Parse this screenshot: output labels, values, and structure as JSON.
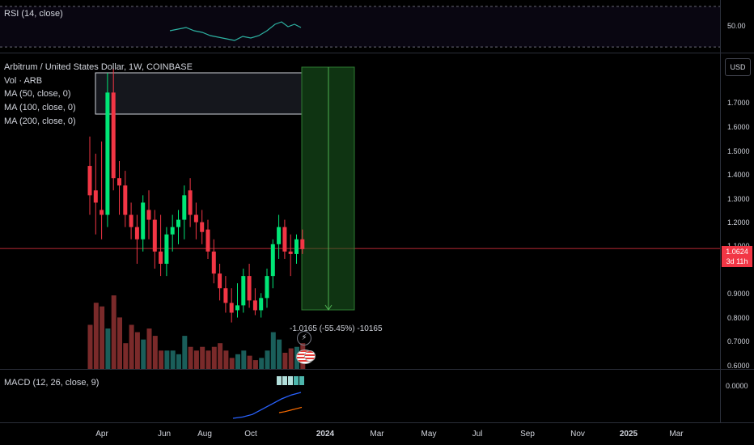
{
  "rsi": {
    "title": "RSI (14, close)",
    "axis_label": "50.00"
  },
  "main": {
    "legend": {
      "symbol": "Arbitrum / United States Dollar, 1W, COINBASE",
      "vol": "Vol · ARB",
      "ma50": "MA (50, close, 0)",
      "ma100": "MA (100, close, 0)",
      "ma200": "MA (200, close, 0)"
    },
    "currency_button": "USD",
    "price_axis": [
      "1.7000",
      "1.6000",
      "1.5000",
      "1.4000",
      "1.3000",
      "1.2000",
      "1.1000",
      "0.9000",
      "0.8000",
      "0.7000",
      "0.6000"
    ],
    "last_price": "1.0624",
    "countdown": "3d 11h",
    "measure_label": "-1.0165 (-55.45%) -10165"
  },
  "macd": {
    "title": "MACD (12, 26, close, 9)",
    "axis_label": "0.0000"
  },
  "time_axis": [
    {
      "label": "Apr",
      "bold": false
    },
    {
      "label": "Jun",
      "bold": false
    },
    {
      "label": "Aug",
      "bold": false
    },
    {
      "label": "Oct",
      "bold": false
    },
    {
      "label": "2024",
      "bold": true
    },
    {
      "label": "Mar",
      "bold": false
    },
    {
      "label": "May",
      "bold": false
    },
    {
      "label": "Jul",
      "bold": false
    },
    {
      "label": "Sep",
      "bold": false
    },
    {
      "label": "Nov",
      "bold": false
    },
    {
      "label": "2025",
      "bold": true
    },
    {
      "label": "Mar",
      "bold": false
    }
  ],
  "colors": {
    "up": "#00e676",
    "down": "#f23645",
    "vol_up": "#1a5e5a",
    "vol_down": "#7a2a2a",
    "ma": "#2962ff"
  },
  "chart_data": {
    "type": "candlestick",
    "ylim": [
      0.57,
      1.86
    ],
    "candles": [
      {
        "o": 1.4,
        "h": 1.52,
        "l": 1.2,
        "c": 1.28
      },
      {
        "o": 1.3,
        "h": 1.45,
        "l": 1.12,
        "c": 1.25
      },
      {
        "o": 1.22,
        "h": 1.5,
        "l": 1.1,
        "c": 1.2
      },
      {
        "o": 1.2,
        "h": 1.78,
        "l": 1.15,
        "c": 1.7
      },
      {
        "o": 1.7,
        "h": 1.8,
        "l": 1.3,
        "c": 1.35
      },
      {
        "o": 1.35,
        "h": 1.42,
        "l": 1.2,
        "c": 1.32
      },
      {
        "o": 1.32,
        "h": 1.38,
        "l": 1.15,
        "c": 1.2
      },
      {
        "o": 1.2,
        "h": 1.25,
        "l": 1.1,
        "c": 1.15
      },
      {
        "o": 1.15,
        "h": 1.2,
        "l": 1.0,
        "c": 1.1
      },
      {
        "o": 1.1,
        "h": 1.28,
        "l": 1.05,
        "c": 1.25
      },
      {
        "o": 1.22,
        "h": 1.3,
        "l": 1.1,
        "c": 1.18
      },
      {
        "o": 1.18,
        "h": 1.22,
        "l": 0.98,
        "c": 1.05
      },
      {
        "o": 1.05,
        "h": 1.2,
        "l": 0.95,
        "c": 1.0
      },
      {
        "o": 1.0,
        "h": 1.15,
        "l": 0.95,
        "c": 1.12
      },
      {
        "o": 1.12,
        "h": 1.2,
        "l": 1.05,
        "c": 1.15
      },
      {
        "o": 1.15,
        "h": 1.22,
        "l": 1.08,
        "c": 1.18
      },
      {
        "o": 1.18,
        "h": 1.32,
        "l": 1.1,
        "c": 1.28
      },
      {
        "o": 1.3,
        "h": 1.35,
        "l": 1.15,
        "c": 1.2
      },
      {
        "o": 1.2,
        "h": 1.25,
        "l": 1.1,
        "c": 1.17
      },
      {
        "o": 1.17,
        "h": 1.22,
        "l": 1.08,
        "c": 1.13
      },
      {
        "o": 1.14,
        "h": 1.18,
        "l": 1.02,
        "c": 1.05
      },
      {
        "o": 1.05,
        "h": 1.1,
        "l": 0.92,
        "c": 0.96
      },
      {
        "o": 0.96,
        "h": 1.0,
        "l": 0.85,
        "c": 0.9
      },
      {
        "o": 0.9,
        "h": 0.95,
        "l": 0.8,
        "c": 0.84
      },
      {
        "o": 0.84,
        "h": 0.9,
        "l": 0.76,
        "c": 0.8
      },
      {
        "o": 0.81,
        "h": 0.92,
        "l": 0.78,
        "c": 0.83
      },
      {
        "o": 0.83,
        "h": 0.98,
        "l": 0.8,
        "c": 0.95
      },
      {
        "o": 0.95,
        "h": 1.0,
        "l": 0.82,
        "c": 0.85
      },
      {
        "o": 0.85,
        "h": 0.9,
        "l": 0.79,
        "c": 0.81
      },
      {
        "o": 0.81,
        "h": 0.88,
        "l": 0.78,
        "c": 0.86
      },
      {
        "o": 0.86,
        "h": 0.98,
        "l": 0.82,
        "c": 0.95
      },
      {
        "o": 0.95,
        "h": 1.1,
        "l": 0.9,
        "c": 1.08
      },
      {
        "o": 1.08,
        "h": 1.2,
        "l": 1.02,
        "c": 1.15
      },
      {
        "o": 1.15,
        "h": 1.18,
        "l": 1.02,
        "c": 1.05
      },
      {
        "o": 1.05,
        "h": 1.12,
        "l": 0.95,
        "c": 1.04
      },
      {
        "o": 1.04,
        "h": 1.12,
        "l": 1.0,
        "c": 1.1
      },
      {
        "o": 1.1,
        "h": 1.14,
        "l": 1.04,
        "c": 1.06
      }
    ],
    "volume": [
      60,
      90,
      85,
      55,
      100,
      70,
      35,
      60,
      50,
      40,
      55,
      45,
      25,
      25,
      25,
      20,
      45,
      30,
      25,
      30,
      25,
      30,
      35,
      25,
      15,
      20,
      25,
      18,
      12,
      15,
      25,
      50,
      40,
      22,
      28,
      30,
      35
    ],
    "macd_line": [
      0.0,
      0.05,
      0.15,
      0.35,
      0.55,
      0.75,
      0.9,
      1.0
    ],
    "signal_line": [
      0.0,
      0.1,
      0.25,
      0.4,
      0.55
    ]
  }
}
